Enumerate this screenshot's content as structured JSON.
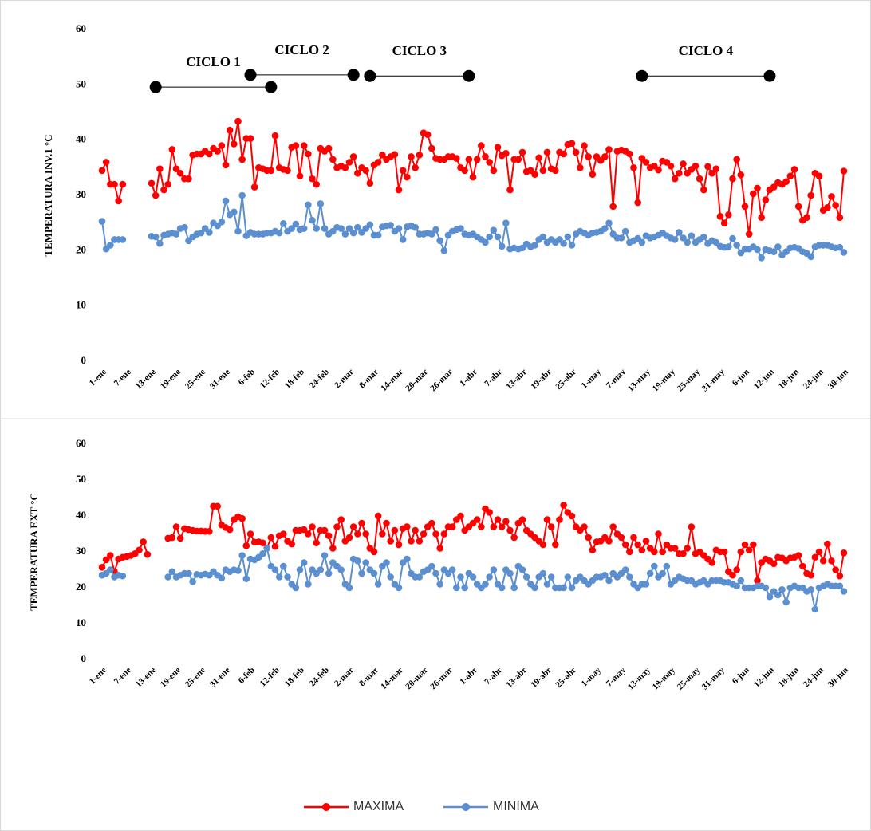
{
  "chart_data": [
    {
      "type": "line",
      "ylabel": "TEMPERATURA INV.1 °C",
      "categories": [
        "1-ene",
        null,
        null,
        null,
        null,
        null,
        "7-ene",
        null,
        null,
        null,
        null,
        null,
        "13-ene",
        null,
        null,
        null,
        null,
        null,
        "19-ene",
        null,
        null,
        null,
        null,
        null,
        "25-ene",
        null,
        null,
        null,
        null,
        null,
        "31-ene",
        null,
        null,
        null,
        null,
        null,
        "6-feb",
        null,
        null,
        null,
        null,
        null,
        "12-feb",
        null,
        null,
        null,
        null,
        null,
        "18-feb",
        null,
        null,
        null,
        null,
        null,
        "24-feb",
        null,
        null,
        null,
        null,
        null,
        "2-mar",
        null,
        null,
        null,
        null,
        null,
        "8-mar",
        null,
        null,
        null,
        null,
        null,
        "14-mar",
        null,
        null,
        null,
        null,
        null,
        "20-mar",
        null,
        null,
        null,
        null,
        null,
        "26-mar",
        null,
        null,
        null,
        null,
        null,
        "1-abr",
        null,
        null,
        null,
        null,
        null,
        "7-abr",
        null,
        null,
        null,
        null,
        null,
        "13-abr",
        null,
        null,
        null,
        null,
        null,
        "19-abr",
        null,
        null,
        null,
        null,
        null,
        "25-abr",
        null,
        null,
        null,
        null,
        null,
        "1-may",
        null,
        null,
        null,
        null,
        null,
        "7-may",
        null,
        null,
        null,
        null,
        null,
        "13-may",
        null,
        null,
        null,
        null,
        null,
        "19-may",
        null,
        null,
        null,
        null,
        null,
        "25-may",
        null,
        null,
        null,
        null,
        null,
        "31-may",
        null,
        null,
        null,
        null,
        null,
        "6-jun",
        null,
        null,
        null,
        null,
        null,
        "12-jun",
        null,
        null,
        null,
        null,
        null,
        "18-jun",
        null,
        null,
        null,
        null,
        null,
        "24-jun",
        null,
        null,
        null,
        null,
        null,
        "30-jun"
      ],
      "ylim": [
        0,
        60
      ],
      "yticks": [
        0,
        10,
        20,
        30,
        40,
        50,
        60
      ],
      "series": [
        {
          "color": "#ff0000",
          "values": [
            34.5,
            36,
            32,
            32,
            29,
            32,
            null,
            null,
            null,
            null,
            null,
            null,
            32.2,
            30,
            34.8,
            31,
            32,
            38.3,
            34.8,
            34,
            33,
            33,
            37.3,
            37.5,
            37.5,
            38,
            37.5,
            38.5,
            38,
            39,
            35.5,
            41.8,
            39.3,
            43.4,
            36.5,
            40.3,
            40.3,
            31.5,
            35,
            34.8,
            34.5,
            34.5,
            40.8,
            35,
            34.7,
            34.5,
            38.7,
            39,
            33.5,
            39,
            37.5,
            33,
            32,
            38.5,
            38,
            38.5,
            36.5,
            35,
            35.3,
            35,
            36,
            37,
            34,
            35,
            34.5,
            32.2,
            35.5,
            36,
            37.3,
            36.5,
            37,
            37.4,
            31,
            34.5,
            33.3,
            37,
            35,
            37.3,
            41.3,
            41,
            38.5,
            36.7,
            36.5,
            36.5,
            37,
            37,
            36.7,
            35,
            34.5,
            36.5,
            33.3,
            36.5,
            39,
            37,
            36,
            34.5,
            38.7,
            37.2,
            37.6,
            31,
            36.5,
            36.5,
            37.8,
            34.3,
            34.5,
            33.8,
            36.8,
            34.5,
            37.8,
            34.8,
            34.5,
            37.8,
            37.5,
            39.2,
            39.4,
            37.8,
            35,
            39,
            37,
            33.8,
            37,
            36.3,
            37,
            38.3,
            28,
            38,
            38.2,
            38,
            37.5,
            35,
            28.7,
            36.7,
            36,
            35,
            35.3,
            34.6,
            36.2,
            36,
            35.3,
            33,
            34,
            35.7,
            34,
            34.7,
            35.3,
            33,
            31,
            35.2,
            34,
            34.8,
            26.2,
            25,
            26.5,
            33,
            36.5,
            33.7,
            28,
            23,
            30.3,
            31.3,
            26,
            29.2,
            31,
            31.5,
            32.3,
            32,
            32.5,
            33.5,
            34.7,
            28,
            25.5,
            26,
            30,
            34,
            33.5,
            27.3,
            27.8,
            29.8,
            28.2,
            26,
            34.4
          ]
        },
        {
          "color": "#5b8fd0",
          "values": [
            25.3,
            20.3,
            21,
            22,
            22,
            22,
            null,
            null,
            null,
            null,
            null,
            null,
            22.6,
            22.5,
            21.3,
            22.8,
            23,
            23.2,
            23,
            24,
            24.2,
            21.8,
            22.5,
            23,
            23.2,
            24,
            23.3,
            25,
            24.5,
            25.2,
            29,
            26.5,
            27,
            23.5,
            30,
            22.7,
            23.3,
            23,
            23,
            23,
            23.2,
            23.2,
            23.5,
            23.2,
            24.9,
            23.5,
            24,
            24.8,
            23.8,
            24,
            28.3,
            25.5,
            24,
            28.5,
            24,
            23,
            23.5,
            24.2,
            24,
            23,
            24,
            23.2,
            24.2,
            23.3,
            24,
            24.7,
            22.8,
            22.8,
            24.3,
            24.5,
            24.6,
            23.5,
            24,
            22,
            24.3,
            24.5,
            24.2,
            23,
            23,
            23.2,
            23,
            23.8,
            21.8,
            20,
            22.8,
            23.5,
            23.8,
            24,
            23,
            22.8,
            23,
            22.5,
            22,
            21.5,
            22.5,
            23.7,
            22.5,
            20.8,
            25,
            20.3,
            20.5,
            20.3,
            20.5,
            21.2,
            20.7,
            21,
            22,
            22.5,
            21.5,
            22,
            21.5,
            22,
            21.3,
            22.5,
            21,
            23,
            23.5,
            23.2,
            22.8,
            23.2,
            23.3,
            23.5,
            24,
            25,
            23,
            22.3,
            22.3,
            23.5,
            21.5,
            21.8,
            22.2,
            21.5,
            22.7,
            22.3,
            22.5,
            22.8,
            23.2,
            22.7,
            22.3,
            22,
            23.3,
            22.3,
            21.5,
            22.7,
            21.5,
            22,
            22.5,
            21.3,
            21.8,
            21.5,
            20.8,
            20.6,
            20.7,
            22.2,
            21,
            19.6,
            20.3,
            20.3,
            20.7,
            20.2,
            18.7,
            20.2,
            20,
            19.8,
            20.7,
            19.2,
            19.8,
            20.5,
            20.6,
            20.4,
            19.8,
            19.5,
            18.9,
            20.7,
            21,
            21,
            21,
            20.7,
            20.5,
            20.6,
            19.7
          ]
        }
      ],
      "annotations": [
        {
          "text": "CICLO 1",
          "from": 13,
          "to": 41,
          "y": 49.6
        },
        {
          "text": "CICLO 2",
          "from": 36,
          "to": 61,
          "y": 51.8
        },
        {
          "text": "CICLO 3",
          "from": 65,
          "to": 89,
          "y": 51.6
        },
        {
          "text": "CICLO 4",
          "from": 131,
          "to": 162,
          "y": 51.6
        }
      ]
    },
    {
      "type": "line",
      "ylabel": "TEMPERATURA EXT °C",
      "categories": [
        "1-ene",
        null,
        null,
        null,
        null,
        null,
        "7-ene",
        null,
        null,
        null,
        null,
        null,
        "13-ene",
        null,
        null,
        null,
        null,
        null,
        "19-ene",
        null,
        null,
        null,
        null,
        null,
        "25-ene",
        null,
        null,
        null,
        null,
        null,
        "31-ene",
        null,
        null,
        null,
        null,
        null,
        "6-feb",
        null,
        null,
        null,
        null,
        null,
        "12-feb",
        null,
        null,
        null,
        null,
        null,
        "18-feb",
        null,
        null,
        null,
        null,
        null,
        "24-feb",
        null,
        null,
        null,
        null,
        null,
        "2-mar",
        null,
        null,
        null,
        null,
        null,
        "8-mar",
        null,
        null,
        null,
        null,
        null,
        "14-mar",
        null,
        null,
        null,
        null,
        null,
        "20-mar",
        null,
        null,
        null,
        null,
        null,
        "26-mar",
        null,
        null,
        null,
        null,
        null,
        "1-abr",
        null,
        null,
        null,
        null,
        null,
        "7-abr",
        null,
        null,
        null,
        null,
        null,
        "13-abr",
        null,
        null,
        null,
        null,
        null,
        "19-abr",
        null,
        null,
        null,
        null,
        null,
        "25-abr",
        null,
        null,
        null,
        null,
        null,
        "1-may",
        null,
        null,
        null,
        null,
        null,
        "7-may",
        null,
        null,
        null,
        null,
        null,
        "13-may",
        null,
        null,
        null,
        null,
        null,
        "19-may",
        null,
        null,
        null,
        null,
        null,
        "25-may",
        null,
        null,
        null,
        null,
        null,
        "31-may",
        null,
        null,
        null,
        null,
        null,
        "6-jun",
        null,
        null,
        null,
        null,
        null,
        "12-jun",
        null,
        null,
        null,
        null,
        null,
        "18-jun",
        null,
        null,
        null,
        null,
        null,
        "24-jun",
        null,
        null,
        null,
        null,
        null,
        "30-jun"
      ],
      "ylim": [
        0,
        60
      ],
      "yticks": [
        0,
        10,
        20,
        30,
        40,
        50,
        60
      ],
      "legend": "bottom",
      "series": [
        {
          "name": "MAXIMA",
          "color": "#ff0000",
          "values": [
            25.7,
            27.8,
            29,
            24.5,
            28,
            28.5,
            28.7,
            29,
            29.5,
            30.5,
            32.8,
            29.3,
            null,
            null,
            null,
            null,
            33.8,
            34,
            37,
            33.8,
            36.5,
            36.2,
            36,
            35.8,
            35.8,
            35.7,
            35.7,
            42.7,
            42.7,
            37.5,
            36.8,
            36.2,
            39,
            39.8,
            39.3,
            31.7,
            35,
            32.7,
            32.8,
            32.5,
            31,
            34,
            31.5,
            34.5,
            35,
            33,
            32.2,
            36,
            36,
            36.2,
            35,
            37,
            32.5,
            36,
            36,
            34.5,
            31,
            37,
            39,
            33,
            34,
            37,
            35,
            38,
            35,
            31,
            30,
            40,
            35,
            38,
            33,
            36,
            32,
            36.5,
            37,
            33,
            36,
            33,
            35,
            37,
            38,
            35,
            31,
            35,
            37,
            37,
            39,
            40,
            36,
            37,
            38,
            39,
            37,
            42,
            41,
            37,
            39,
            37,
            38.5,
            36,
            34,
            38,
            39,
            36,
            35,
            34,
            33,
            32,
            39,
            37,
            32,
            39,
            43,
            41,
            40,
            37,
            36,
            37,
            34,
            30.5,
            32.8,
            33,
            34,
            33,
            37,
            35,
            34,
            32,
            30,
            34,
            32,
            30.5,
            33,
            31,
            30,
            35,
            30,
            32,
            31,
            31,
            29.5,
            29.5,
            31,
            37,
            29.5,
            30,
            29,
            28,
            27,
            30.5,
            30,
            30,
            24.5,
            23.5,
            25,
            30,
            32,
            30.5,
            32,
            22,
            27,
            28,
            27.5,
            26.7,
            28.5,
            28.3,
            27.5,
            28.3,
            28.5,
            29,
            26,
            24,
            23.5,
            28.5,
            30,
            27.5,
            32.2,
            27.5,
            25,
            23.3,
            29.7
          ]
        },
        {
          "name": "MINIMA",
          "color": "#5b8fd0",
          "values": [
            23.5,
            24,
            25,
            23,
            23.5,
            23.3,
            null,
            null,
            null,
            null,
            null,
            null,
            null,
            null,
            null,
            null,
            23,
            24.5,
            23,
            23.5,
            24,
            24,
            21.7,
            23.7,
            23.5,
            23.8,
            23.5,
            24.5,
            23.5,
            22.7,
            25,
            24.5,
            25,
            24.8,
            29,
            22.5,
            28,
            27.8,
            28.5,
            29.5,
            31,
            26,
            25,
            23,
            26,
            23,
            21,
            20,
            25,
            27,
            21,
            25,
            24,
            25,
            29,
            24,
            27,
            26,
            25,
            21,
            20,
            28,
            27.5,
            24,
            27,
            25,
            24,
            21,
            26,
            27,
            23,
            21,
            20,
            27,
            28,
            24,
            23,
            23,
            24.5,
            25,
            26,
            24,
            21,
            25,
            24,
            25,
            20,
            23,
            20,
            24,
            23,
            21,
            20,
            21,
            23,
            25,
            21,
            20,
            25,
            24,
            20,
            26,
            25,
            23,
            21,
            20,
            23,
            24,
            21,
            23,
            20,
            20,
            20,
            23,
            20,
            22,
            23,
            22,
            21,
            22,
            23,
            23,
            23.5,
            22,
            24,
            23,
            24,
            25,
            23,
            21,
            20,
            21,
            21,
            24,
            26,
            23,
            24,
            26,
            21,
            22,
            23,
            22.5,
            22,
            22,
            21,
            21.5,
            22,
            21,
            22,
            22,
            22,
            21.5,
            21.5,
            21,
            20.5,
            22,
            20,
            20,
            20,
            20.5,
            20.5,
            20,
            17.5,
            19,
            18,
            19.5,
            16,
            20,
            20.5,
            20,
            20,
            19,
            19.5,
            14,
            20,
            20.5,
            21,
            20.5,
            20.5,
            20.5,
            19
          ]
        }
      ]
    }
  ]
}
